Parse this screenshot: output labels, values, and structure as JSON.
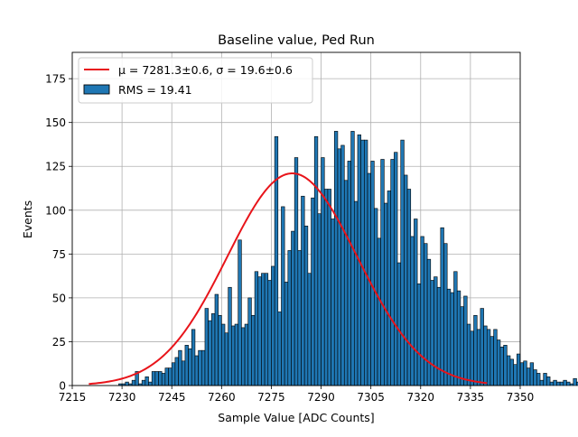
{
  "chart_data": {
    "type": "bar",
    "title": "Baseline value, Ped Run",
    "xlabel": "Sample Value [ADC Counts]",
    "ylabel": "Events",
    "xlim": [
      7215,
      7350
    ],
    "ylim": [
      0,
      190
    ],
    "xticks": [
      7215,
      7230,
      7245,
      7260,
      7275,
      7290,
      7305,
      7320,
      7335,
      7350
    ],
    "yticks": [
      0,
      25,
      50,
      75,
      100,
      125,
      150,
      175
    ],
    "grid": true,
    "legend_position": "top-left",
    "legend": {
      "fit_label": "μ = 7281.3±0.6, σ = 19.6±0.6",
      "hist_label": "RMS = 19.41"
    },
    "colors": {
      "bars": "#1f77b4",
      "bar_edge": "#000000",
      "fit": "#e8141a",
      "grid": "#b0b0b0"
    },
    "histogram": {
      "bin_start": 7220,
      "bin_width": 1,
      "values": [
        0,
        0,
        0,
        0,
        0,
        0,
        0,
        0,
        0,
        1,
        1,
        2,
        1,
        3,
        8,
        1,
        3,
        5,
        2,
        8,
        8,
        8,
        7,
        10,
        10,
        13,
        16,
        20,
        14,
        23,
        21,
        32,
        17,
        20,
        20,
        44,
        37,
        41,
        52,
        40,
        35,
        30,
        56,
        34,
        35,
        83,
        33,
        35,
        50,
        40,
        65,
        62,
        64,
        64,
        60,
        68,
        142,
        42,
        102,
        59,
        77,
        88,
        130,
        77,
        108,
        91,
        64,
        107,
        142,
        98,
        130,
        112,
        112,
        95,
        145,
        135,
        137,
        117,
        128,
        145,
        105,
        143,
        140,
        140,
        121,
        128,
        101,
        84,
        129,
        104,
        111,
        129,
        133,
        70,
        140,
        120,
        112,
        85,
        95,
        58,
        85,
        81,
        72,
        60,
        62,
        56,
        90,
        81,
        55,
        53,
        65,
        54,
        45,
        51,
        35,
        31,
        40,
        32,
        44,
        34,
        32,
        28,
        32,
        26,
        22,
        23,
        17,
        15,
        12,
        18,
        13,
        14,
        10,
        13,
        9,
        7,
        3,
        7,
        5,
        2,
        3,
        2,
        2,
        3,
        2,
        1,
        4,
        2,
        1,
        4
      ]
    },
    "fit": {
      "mu": 7281.3,
      "sigma": 19.6,
      "amplitude": 121,
      "x_range": [
        7220,
        7340
      ]
    }
  }
}
